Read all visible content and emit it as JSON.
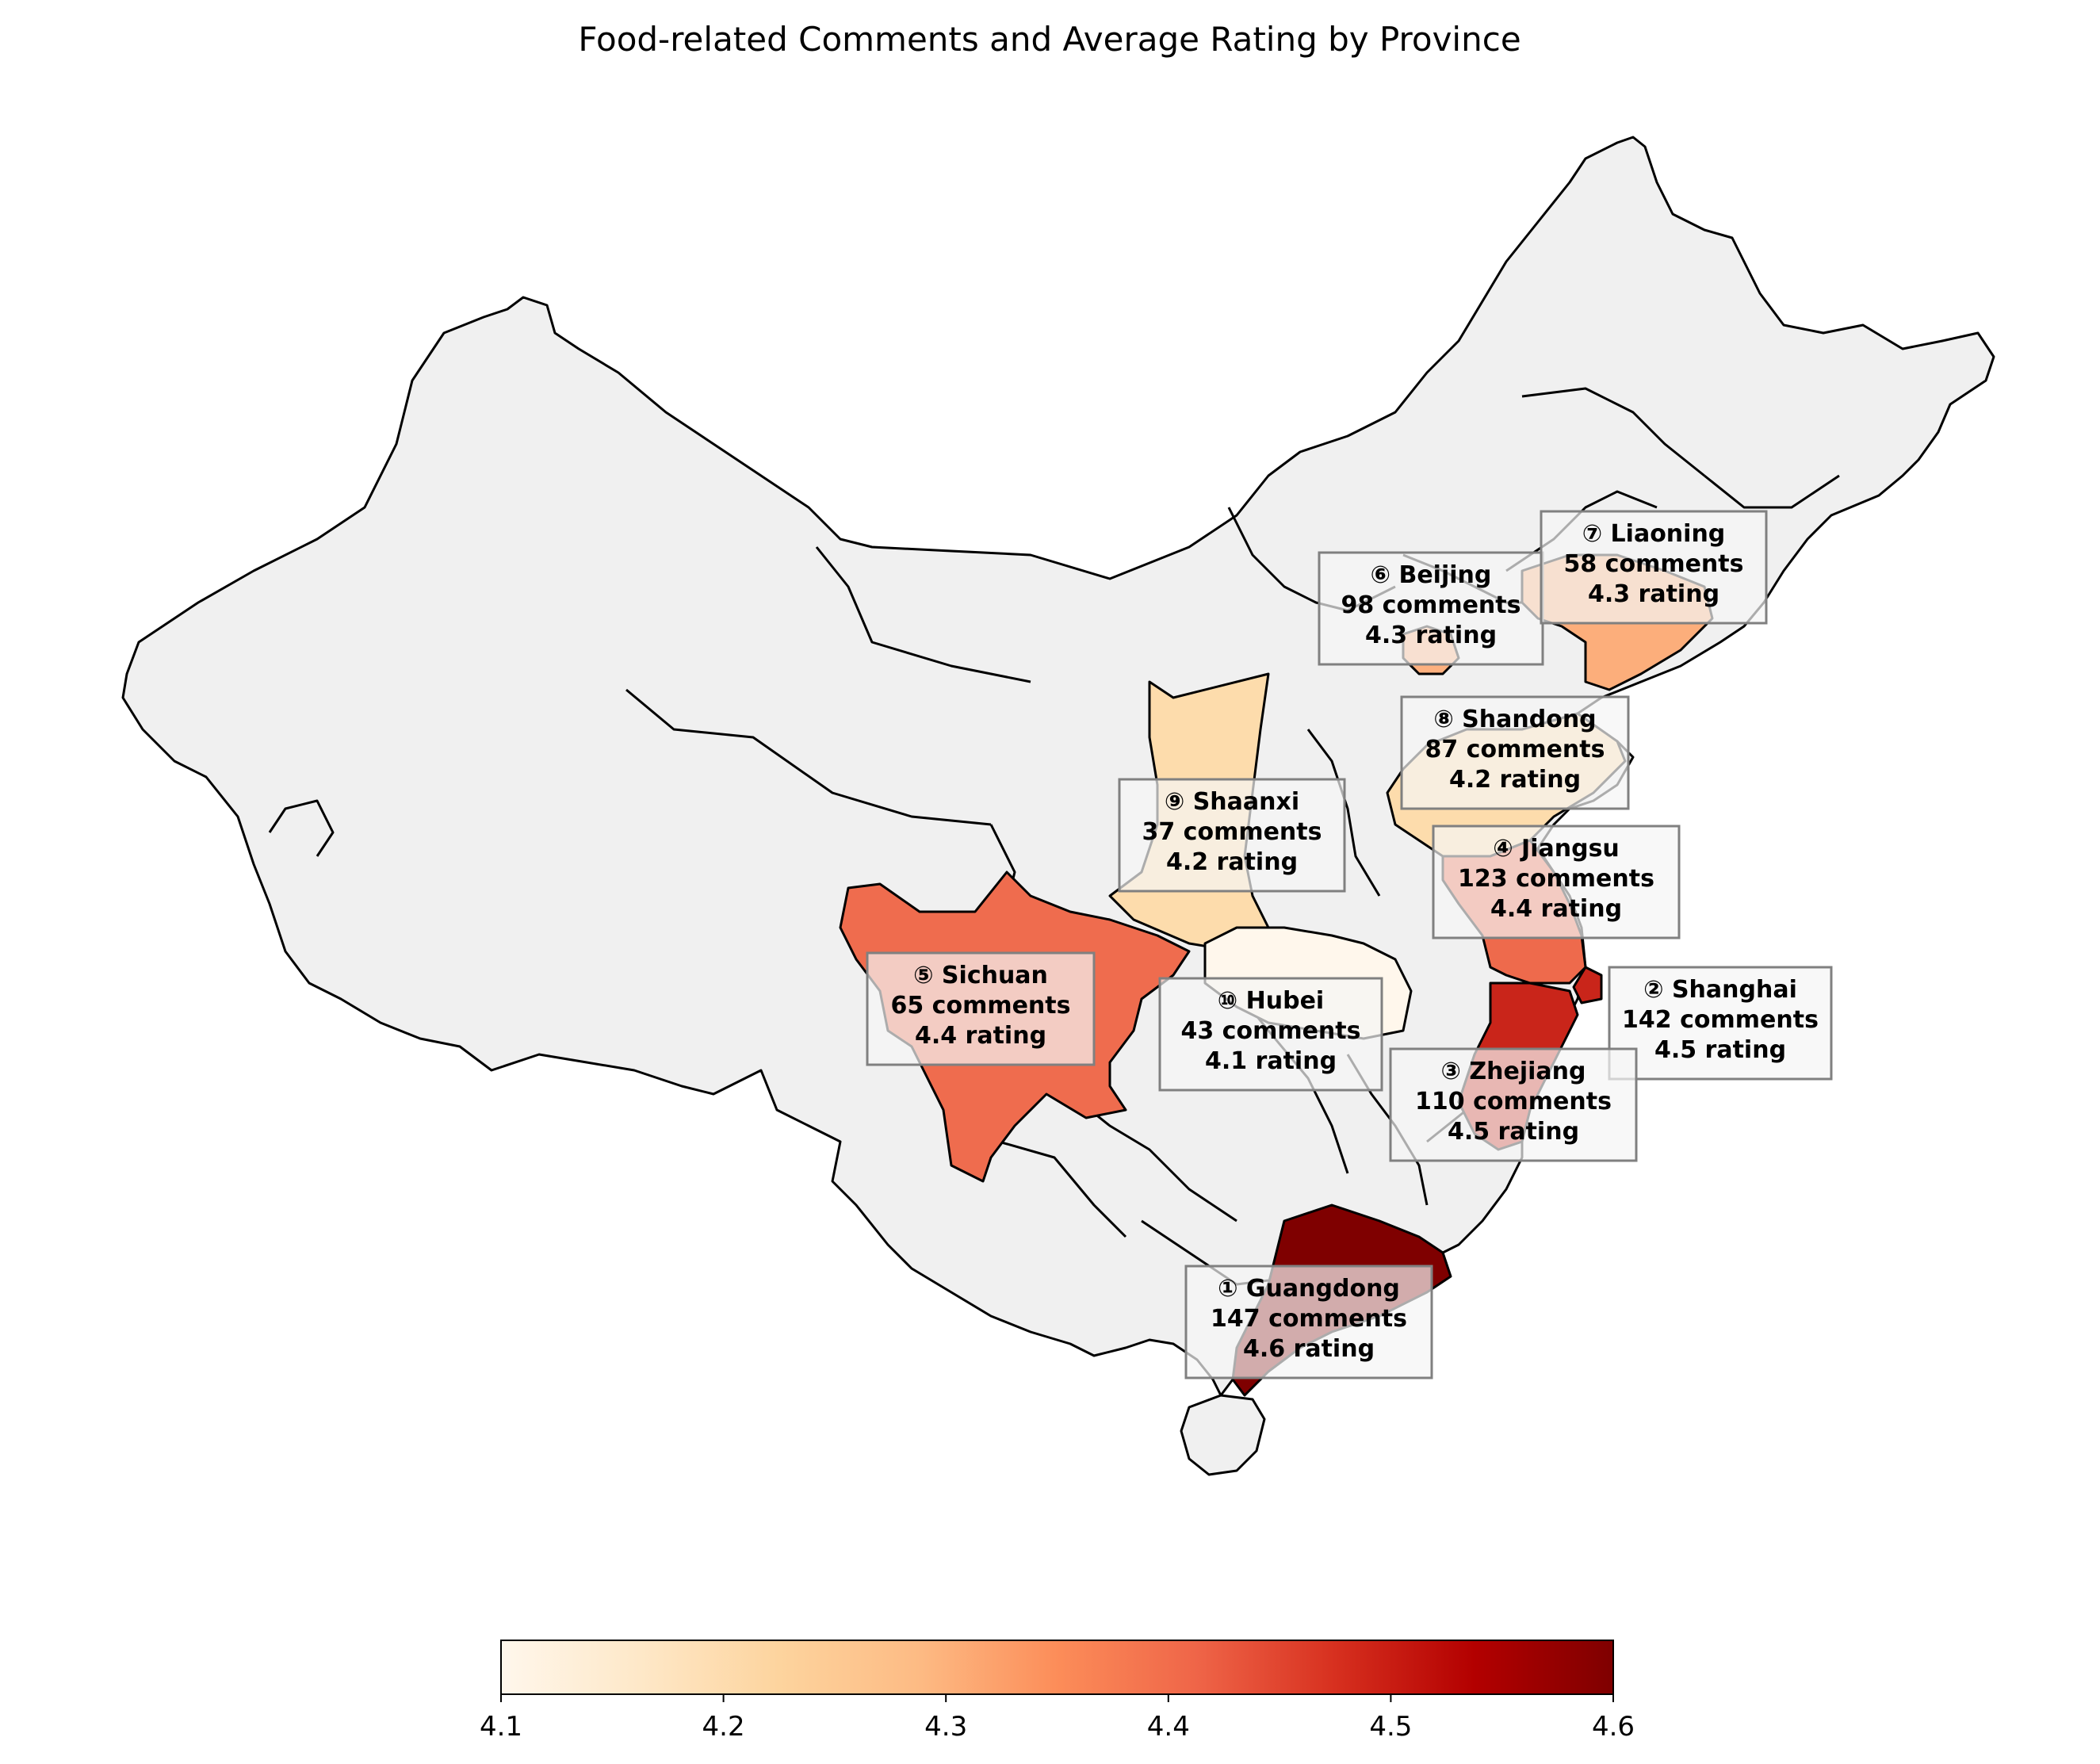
{
  "title": "Food-related Comments and Average Rating by Province",
  "colors": {
    "background": "#ffffff",
    "land_unhighlighted": "#f0f0f0",
    "land_border": "#000000",
    "label_box_fill": "#f5f5f5",
    "label_box_stroke": "#808080",
    "colormap": "OrRd"
  },
  "colorbar": {
    "min": 4.1,
    "max": 4.6,
    "ticks": [
      "4.1",
      "4.2",
      "4.3",
      "4.4",
      "4.5",
      "4.6"
    ],
    "stops": [
      "#fff7ec",
      "#fee8c8",
      "#fdd49e",
      "#fdbb84",
      "#fc8d59",
      "#ef6548",
      "#d7301f",
      "#b30000",
      "#7f0000"
    ]
  },
  "provinces": [
    {
      "rank": "①",
      "name": "Guangdong",
      "comments": "147 comments",
      "rating_text": "4.6 rating",
      "rating": 4.6,
      "fill": "#7f0000"
    },
    {
      "rank": "②",
      "name": "Shanghai",
      "comments": "142 comments",
      "rating_text": "4.5 rating",
      "rating": 4.5,
      "fill": "#c9251a"
    },
    {
      "rank": "③",
      "name": "Zhejiang",
      "comments": "110 comments",
      "rating_text": "4.5 rating",
      "rating": 4.5,
      "fill": "#c9251a"
    },
    {
      "rank": "④",
      "name": "Jiangsu",
      "comments": "123 comments",
      "rating_text": "4.4 rating",
      "rating": 4.4,
      "fill": "#ee6a4c"
    },
    {
      "rank": "⑤",
      "name": "Sichuan",
      "comments": "65 comments",
      "rating_text": "4.4 rating",
      "rating": 4.4,
      "fill": "#ef6c4e"
    },
    {
      "rank": "⑥",
      "name": "Beijing",
      "comments": "98 comments",
      "rating_text": "4.3 rating",
      "rating": 4.3,
      "fill": "#fdb07e"
    },
    {
      "rank": "⑦",
      "name": "Liaoning",
      "comments": "58 comments",
      "rating_text": "4.3 rating",
      "rating": 4.3,
      "fill": "#fcae7b"
    },
    {
      "rank": "⑧",
      "name": "Shandong",
      "comments": "87 comments",
      "rating_text": "4.2 rating",
      "rating": 4.2,
      "fill": "#fddcac"
    },
    {
      "rank": "⑨",
      "name": "Shaanxi",
      "comments": "37 comments",
      "rating_text": "4.2 rating",
      "rating": 4.2,
      "fill": "#fddcac"
    },
    {
      "rank": "⑩",
      "name": "Hubei",
      "comments": "43 comments",
      "rating_text": "4.1 rating",
      "rating": 4.1,
      "fill": "#fff7ec"
    }
  ]
}
